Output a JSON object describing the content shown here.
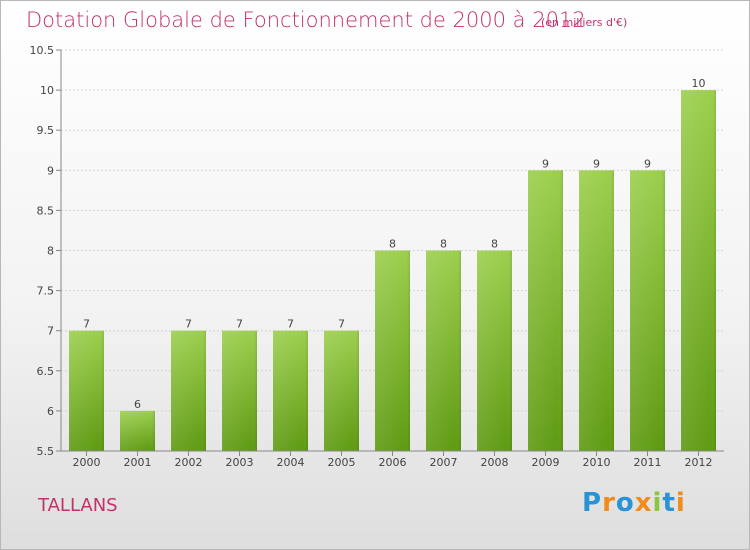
{
  "chart_data": {
    "type": "bar",
    "title": "Dotation Globale de Fonctionnement de 2000 à 2012",
    "subtitle": "(en milliers d'€)",
    "categories": [
      "2000",
      "2001",
      "2002",
      "2003",
      "2004",
      "2005",
      "2006",
      "2007",
      "2008",
      "2009",
      "2010",
      "2011",
      "2012"
    ],
    "values": [
      7,
      6,
      7,
      7,
      7,
      7,
      8,
      8,
      8,
      9,
      9,
      9,
      10
    ],
    "ylim": [
      5.5,
      10.5
    ],
    "yticks": [
      5.5,
      6,
      6.5,
      7,
      7.5,
      8,
      8.5,
      9,
      9.5,
      10,
      10.5
    ],
    "ytick_labels": [
      "5.5",
      "6",
      "6.5",
      "7",
      "7.5",
      "8",
      "8.5",
      "9",
      "9.5",
      "10",
      "10.5"
    ],
    "grid": true,
    "bar_color_top": "#9ccf4e",
    "bar_color_bottom": "#5e9a12",
    "data_labels": true
  },
  "footer": {
    "commune": "TALLANS",
    "brand_letters": [
      {
        "char": "P",
        "color": "#2a93d6"
      },
      {
        "char": "r",
        "color": "#f08c1c"
      },
      {
        "char": "o",
        "color": "#2a93d6"
      },
      {
        "char": "x",
        "color": "#f08c1c"
      },
      {
        "char": "i",
        "color": "#8cc63f"
      },
      {
        "char": "t",
        "color": "#2a93d6"
      },
      {
        "char": "i",
        "color": "#f08c1c"
      }
    ]
  },
  "colors": {
    "title": "#c4306c",
    "grid": "#d4d4d4",
    "axis": "#888888"
  }
}
